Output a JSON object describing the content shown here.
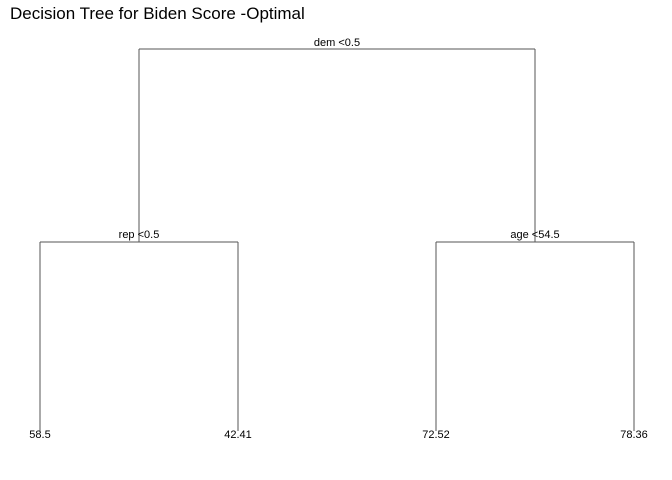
{
  "title": "Decision Tree for Biden Score -Optimal",
  "tree": {
    "split": "dem <0.5",
    "left": {
      "split": "rep <0.5",
      "left": {
        "leaf": "58.5"
      },
      "right": {
        "leaf": "42.41"
      }
    },
    "right": {
      "split": "age <54.5",
      "left": {
        "leaf": "72.52"
      },
      "right": {
        "leaf": "78.36"
      }
    }
  }
}
